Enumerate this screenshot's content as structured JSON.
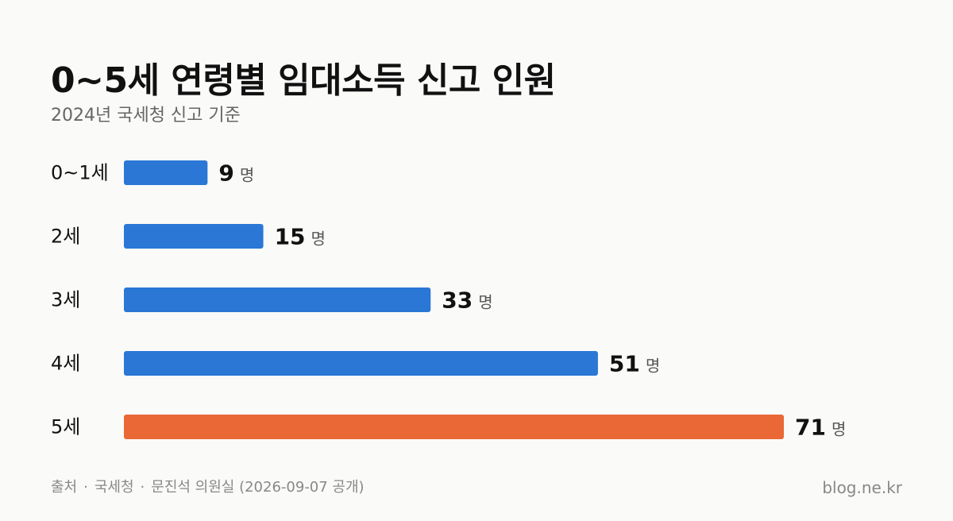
{
  "chart_data": {
    "type": "bar",
    "orientation": "horizontal",
    "title": "0~5세 연령별 임대소득 신고 인원",
    "subtitle": "2024년 국세청 신고 기준",
    "categories": [
      "0~1세",
      "2세",
      "3세",
      "4세",
      "5세"
    ],
    "values": [
      9,
      15,
      33,
      51,
      71
    ],
    "unit": "명",
    "colors": [
      "#2a77d6",
      "#2a77d6",
      "#2a77d6",
      "#2a77d6",
      "#ea6836"
    ],
    "xlim": [
      0,
      71
    ],
    "grid": false,
    "legend": "none"
  },
  "footer": {
    "source_label": "출처",
    "source_org": "국세청",
    "source_detail": "문진석 의원실 (2026-09-07 공개)",
    "separator": "·",
    "site": "blog.ne.kr"
  }
}
